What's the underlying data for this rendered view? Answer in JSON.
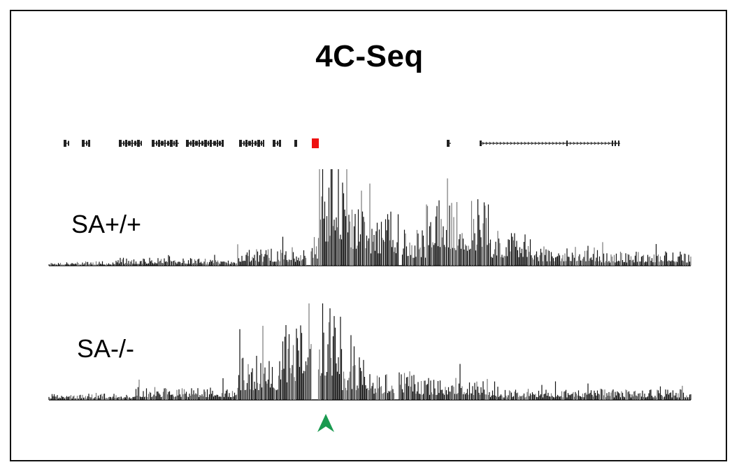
{
  "figure": {
    "title": "4C-Seq",
    "tracks": [
      {
        "label": "SA+/+"
      },
      {
        "label": "SA-/-"
      }
    ]
  },
  "annotation": {
    "gene_color": "#222222",
    "viewpoint_color": "#ee1111",
    "viewpoint_arrow_color": "#1a9a50",
    "signal_color": "#111111",
    "signal_light_color": "#777777"
  },
  "genes": [
    {
      "start": 91,
      "end": 99,
      "strand": "none"
    },
    {
      "start": 117,
      "end": 129,
      "strand": "none"
    },
    {
      "start": 170,
      "end": 203,
      "strand": "none"
    },
    {
      "start": 217,
      "end": 256,
      "strand": "none"
    },
    {
      "start": 266,
      "end": 320,
      "strand": "+"
    },
    {
      "start": 342,
      "end": 378,
      "strand": "none"
    },
    {
      "start": 390,
      "end": 402,
      "strand": "none"
    },
    {
      "start": 421,
      "end": 425,
      "strand": "none"
    },
    {
      "start": 639,
      "end": 645,
      "strand": "none"
    },
    {
      "start": 686,
      "end": 887,
      "strand": "+"
    }
  ],
  "viewpoint": {
    "position": 451
  }
}
